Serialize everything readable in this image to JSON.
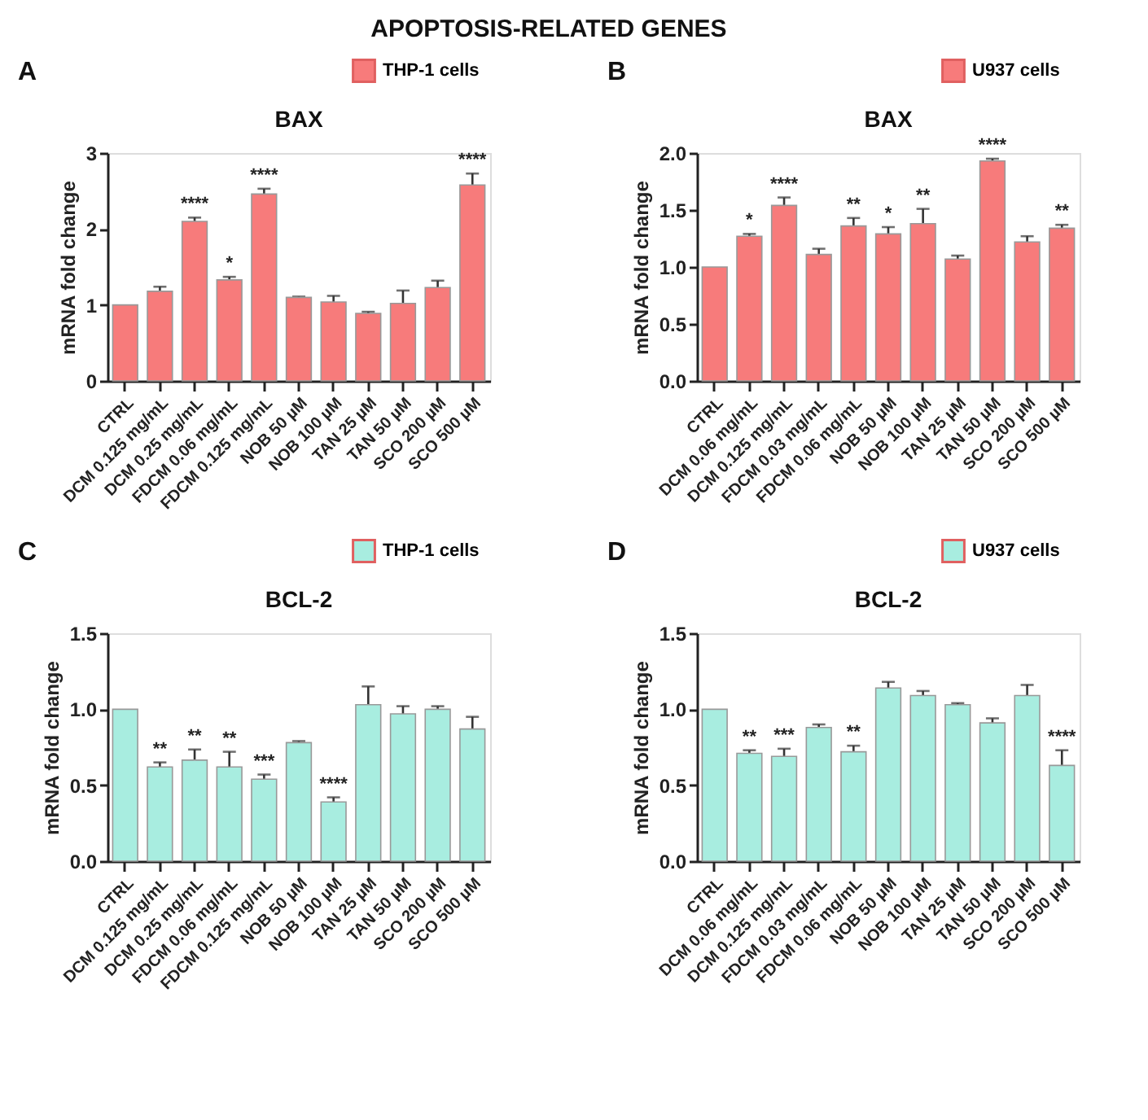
{
  "chart_data": [
    {
      "type": "bar",
      "title": "BAX",
      "ylabel": "mRNA fold change",
      "categories": [
        "CTRL",
        "DCM 0.125 mg/mL",
        "DCM 0.25 mg/mL",
        "FDCM 0.06 mg/mL",
        "FDCM 0.125 mg/mL",
        "NOB 50 µM",
        "NOB 100 µM",
        "TAN 25 µM",
        "TAN 50 µM",
        "SCO 200 µM",
        "SCO 500 µM"
      ],
      "series": [
        {
          "name": "THP-1 cells",
          "color": "#f77b7b",
          "values": [
            1.0,
            1.18,
            2.1,
            1.33,
            2.46,
            1.1,
            1.04,
            0.89,
            1.02,
            1.23,
            2.58
          ],
          "errors": [
            null,
            0.06,
            0.05,
            0.04,
            0.07,
            0.01,
            0.08,
            0.02,
            0.17,
            0.09,
            0.15
          ]
        }
      ],
      "ylim": [
        0,
        3
      ],
      "yticks": [
        0,
        1,
        2,
        3
      ],
      "grid": false,
      "legend": "top right",
      "annotations": [
        "A",
        "APOPTOSIS-RELATED GENES",
        {
          "text": "****",
          "x": "DCM 0.25 mg/mL",
          "y": 2.15
        },
        {
          "text": "*",
          "x": "FDCM 0.06 mg/mL",
          "y": 1.37
        },
        {
          "text": "****",
          "x": "FDCM 0.125 mg/mL",
          "y": 2.53
        },
        {
          "text": "****",
          "x": "SCO 500 µM",
          "y": 2.73
        }
      ]
    },
    {
      "type": "bar",
      "title": "BAX",
      "ylabel": "mRNA fold change",
      "categories": [
        "CTRL",
        "DCM 0.06 mg/mL",
        "DCM 0.125 mg/mL",
        "FDCM 0.03 mg/mL",
        "FDCM 0.06 mg/mL",
        "NOB 50 µM",
        "NOB 100 µM",
        "TAN 25 µM",
        "TAN 50 µM",
        "SCO 200 µM",
        "SCO 500 µM"
      ],
      "series": [
        {
          "name": "U937 cells",
          "color": "#f77b7b",
          "values": [
            1.0,
            1.27,
            1.54,
            1.11,
            1.36,
            1.29,
            1.38,
            1.07,
            1.93,
            1.22,
            1.34
          ],
          "errors": [
            null,
            0.02,
            0.07,
            0.05,
            0.07,
            0.06,
            0.13,
            0.03,
            0.02,
            0.05,
            0.03
          ]
        }
      ],
      "ylim": [
        0,
        2
      ],
      "yticks": [
        {
          "value": 0,
          "label": "0.0"
        },
        0.5,
        {
          "value": 1,
          "label": "1.0"
        },
        1.5,
        {
          "value": 2,
          "label": "2.0"
        }
      ],
      "grid": false,
      "legend": "top right",
      "annotations": [
        "B",
        {
          "text": "*",
          "x": "DCM 0.06 mg/mL",
          "y": 1.29
        },
        {
          "text": "****",
          "x": "DCM 0.125 mg/mL",
          "y": 1.61
        },
        {
          "text": "**",
          "x": "FDCM 0.06 mg/mL",
          "y": 1.43
        },
        {
          "text": "*",
          "x": "NOB 50 µM",
          "y": 1.35
        },
        {
          "text": "**",
          "x": "NOB 100 µM",
          "y": 1.51
        },
        {
          "text": "****",
          "x": "TAN 50 µM",
          "y": 1.95
        },
        {
          "text": "**",
          "x": "SCO 500 µM",
          "y": 1.37
        }
      ]
    },
    {
      "type": "bar",
      "title": "BCL-2",
      "ylabel": "mRNA fold change",
      "categories": [
        "CTRL",
        "DCM 0.125 mg/mL",
        "DCM 0.25 mg/mL",
        "FDCM 0.06 mg/mL",
        "FDCM 0.125 mg/mL",
        "NOB 50 µM",
        "NOB 100 µM",
        "TAN 25 µM",
        "TAN 50 µM",
        "SCO 200 µM",
        "SCO 500 µM"
      ],
      "series": [
        {
          "name": "THP-1 cells",
          "color": "#a8ede0",
          "values": [
            1.0,
            0.62,
            0.665,
            0.62,
            0.54,
            0.78,
            0.39,
            1.03,
            0.97,
            1.0,
            0.87
          ],
          "errors": [
            null,
            0.03,
            0.07,
            0.1,
            0.03,
            0.01,
            0.03,
            0.12,
            0.05,
            0.02,
            0.08
          ]
        }
      ],
      "ylim": [
        0,
        1.5
      ],
      "yticks": [
        {
          "value": 0,
          "label": "0.0"
        },
        0.5,
        {
          "value": 1,
          "label": "1.0"
        },
        1.5
      ],
      "grid": false,
      "legend": "top right",
      "annotations": [
        "C",
        {
          "text": "**",
          "x": "DCM 0.125 mg/mL",
          "y": 0.65
        },
        {
          "text": "**",
          "x": "DCM 0.25 mg/mL",
          "y": 0.735
        },
        {
          "text": "**",
          "x": "FDCM 0.06 mg/mL",
          "y": 0.72
        },
        {
          "text": "***",
          "x": "FDCM 0.125 mg/mL",
          "y": 0.57
        },
        {
          "text": "****",
          "x": "NOB 100 µM",
          "y": 0.42
        }
      ]
    },
    {
      "type": "bar",
      "title": "BCL-2",
      "ylabel": "mRNA fold change",
      "categories": [
        "CTRL",
        "DCM 0.06 mg/mL",
        "DCM 0.125 mg/mL",
        "FDCM 0.03 mg/mL",
        "FDCM 0.06 mg/mL",
        "NOB 50 µM",
        "NOB 100 µM",
        "TAN 25 µM",
        "TAN 50 µM",
        "SCO 200 µM",
        "SCO 500 µM"
      ],
      "series": [
        {
          "name": "U937 cells",
          "color": "#a8ede0",
          "values": [
            1.0,
            0.71,
            0.69,
            0.88,
            0.72,
            1.14,
            1.09,
            1.03,
            0.91,
            1.09,
            0.63
          ],
          "errors": [
            null,
            0.02,
            0.05,
            0.02,
            0.04,
            0.04,
            0.03,
            0.01,
            0.03,
            0.07,
            0.1
          ]
        }
      ],
      "ylim": [
        0,
        1.5
      ],
      "yticks": [
        {
          "value": 0,
          "label": "0.0"
        },
        0.5,
        {
          "value": 1,
          "label": "1.0"
        },
        1.5
      ],
      "grid": false,
      "legend": "top right",
      "annotations": [
        "D",
        {
          "text": "**",
          "x": "DCM 0.06 mg/mL",
          "y": 0.73
        },
        {
          "text": "***",
          "x": "DCM 0.125 mg/mL",
          "y": 0.74
        },
        {
          "text": "**",
          "x": "FDCM 0.06 mg/mL",
          "y": 0.76
        },
        {
          "text": "****",
          "x": "SCO 500 µM",
          "y": 0.73
        }
      ]
    }
  ]
}
